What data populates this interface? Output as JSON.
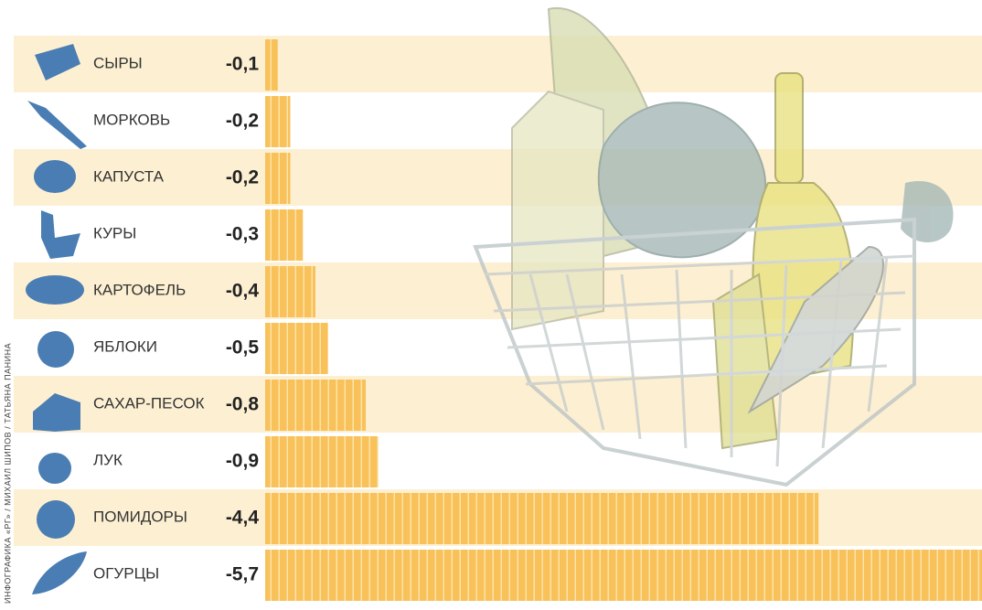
{
  "chart_data": {
    "type": "bar",
    "orientation": "horizontal",
    "credit": "ИНФОГРАФИКА «РГ» / МИХАИЛ ШИПОВ / ТАТЬЯНА ПАНИНА",
    "categories": [
      "СЫРЫ",
      "МОРКОВЬ",
      "КАПУСТА",
      "КУРЫ",
      "КАРТОФЕЛЬ",
      "ЯБЛОКИ",
      "САХАР-ПЕСОК",
      "ЛУК",
      "ПОМИДОРЫ",
      "ОГУРЦЫ"
    ],
    "values": [
      -0.1,
      -0.2,
      -0.2,
      -0.3,
      -0.4,
      -0.5,
      -0.8,
      -0.9,
      -4.4,
      -5.7
    ],
    "value_labels": [
      "-0,1",
      "-0,2",
      "-0,2",
      "-0,3",
      "-0,4",
      "-0,5",
      "-0,8",
      "-0,9",
      "-4,4",
      "-5,7"
    ],
    "color": "#f8c15a",
    "xlim": [
      0,
      -5.7
    ]
  }
}
